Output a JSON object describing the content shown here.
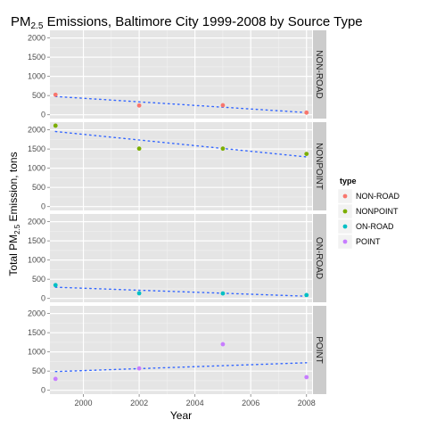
{
  "chart_data": {
    "type": "scatter",
    "title": {
      "prefix": "PM",
      "subscript": "2.5",
      "rest": " Emissions, Baltimore City 1999-2008 by Source Type"
    },
    "xlabel": "Year",
    "ylabel": {
      "prefix": "Total PM",
      "subscript": "2.5",
      "rest": " Emission, tons"
    },
    "x_ticks": [
      2000,
      2002,
      2004,
      2006,
      2008
    ],
    "y_ticks": [
      0,
      500,
      1000,
      1500,
      2000
    ],
    "xlim": [
      1998.8,
      2008.2
    ],
    "ylim": [
      -100,
      2200
    ],
    "grid": true,
    "facet": "rows",
    "trend_line": {
      "style": "dotted",
      "color": "#3366ff",
      "method": "linear fit"
    },
    "legend": {
      "title": "type",
      "placement": "right",
      "entries": [
        {
          "label": "NON-ROAD",
          "color": "#f8766d"
        },
        {
          "label": "NONPOINT",
          "color": "#7cae00"
        },
        {
          "label": "ON-ROAD",
          "color": "#00bfc4"
        },
        {
          "label": "POINT",
          "color": "#c77cff"
        }
      ]
    },
    "panels": [
      {
        "name": "NON-ROAD",
        "color": "#f8766d",
        "x": [
          1999,
          2002,
          2005,
          2008
        ],
        "y": [
          522,
          241,
          248,
          55
        ]
      },
      {
        "name": "NONPOINT",
        "color": "#7cae00",
        "x": [
          1999,
          2002,
          2005,
          2008
        ],
        "y": [
          2108,
          1510,
          1510,
          1373
        ]
      },
      {
        "name": "ON-ROAD",
        "color": "#00bfc4",
        "x": [
          1999,
          2002,
          2005,
          2008
        ],
        "y": [
          347,
          134,
          130,
          88
        ]
      },
      {
        "name": "POINT",
        "color": "#c77cff",
        "x": [
          1999,
          2002,
          2005,
          2008
        ],
        "y": [
          297,
          570,
          1200,
          342
        ]
      }
    ]
  }
}
